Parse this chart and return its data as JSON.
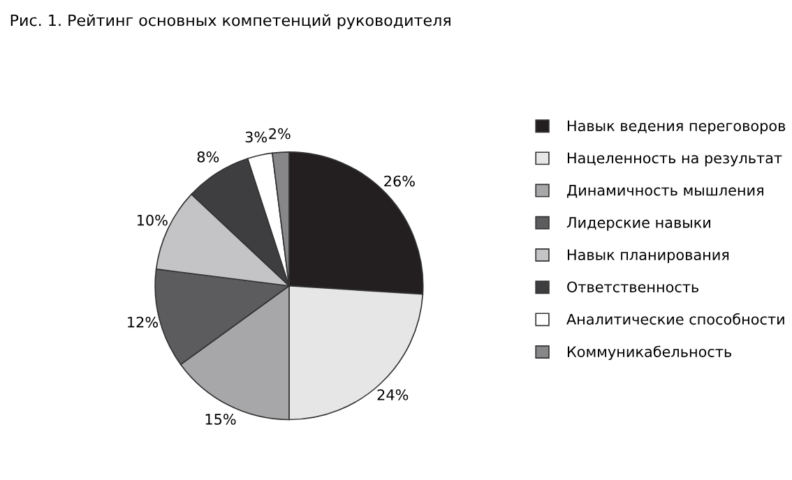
{
  "chart_data": {
    "type": "pie",
    "title": "Рис. 1. Рейтинг основных компетенций руководителя",
    "categories": [
      "Навык ведения переговоров",
      "Нацеленность на результат",
      "Динамичность мышления",
      "Лидерские навыки",
      "Навык планирования",
      "Ответственность",
      "Аналитические способности",
      "Коммуникабельность"
    ],
    "values": [
      26,
      24,
      15,
      12,
      10,
      8,
      3,
      2
    ],
    "colors": [
      "#231f20",
      "#e6e6e6",
      "#a7a7a9",
      "#5c5c5e",
      "#c4c4c6",
      "#3e3e40",
      "#ffffff",
      "#87878a"
    ],
    "value_labels": [
      "26%",
      "24%",
      "15%",
      "12%",
      "10%",
      "8%",
      "3%",
      "2%"
    ],
    "legend": "right"
  }
}
